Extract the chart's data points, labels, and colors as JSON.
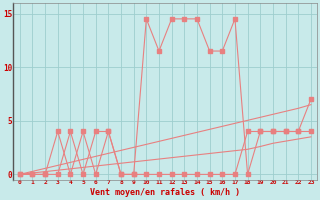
{
  "xlabel": "Vent moyen/en rafales ( km/h )",
  "x": [
    0,
    1,
    2,
    3,
    4,
    5,
    6,
    7,
    8,
    9,
    10,
    11,
    12,
    13,
    14,
    15,
    16,
    17,
    18,
    19,
    20,
    21,
    22,
    23
  ],
  "y_gust": [
    0,
    0,
    0,
    4,
    0,
    4,
    0,
    4,
    0,
    0,
    14.5,
    11.5,
    14.5,
    14.5,
    14.5,
    11.5,
    11.5,
    14.5,
    0,
    4,
    4,
    4,
    4,
    7
  ],
  "y_avg": [
    0,
    0,
    0,
    0,
    4,
    0,
    4,
    4,
    0,
    0,
    0,
    0,
    0,
    0,
    0,
    0,
    0,
    0,
    4,
    4,
    4,
    4,
    4,
    4
  ],
  "y_trend1": [
    0,
    0.28,
    0.56,
    0.84,
    1.12,
    1.4,
    1.68,
    1.96,
    2.24,
    2.52,
    2.8,
    3.08,
    3.36,
    3.64,
    3.92,
    4.2,
    4.48,
    4.76,
    5.04,
    5.32,
    5.6,
    5.88,
    6.16,
    6.5
  ],
  "y_trend2": [
    0,
    0.13,
    0.26,
    0.39,
    0.52,
    0.65,
    0.78,
    0.91,
    1.04,
    1.17,
    1.3,
    1.43,
    1.56,
    1.69,
    1.82,
    1.95,
    2.08,
    2.21,
    2.34,
    2.6,
    2.9,
    3.1,
    3.3,
    3.5
  ],
  "line_color": "#e88080",
  "bg_color": "#c8eaea",
  "grid_color": "#9ecece",
  "axis_color": "#cc0000",
  "ylim": [
    -0.5,
    16
  ],
  "yticks": [
    0,
    5,
    10,
    15
  ],
  "figw": 3.2,
  "figh": 2.0,
  "dpi": 100
}
